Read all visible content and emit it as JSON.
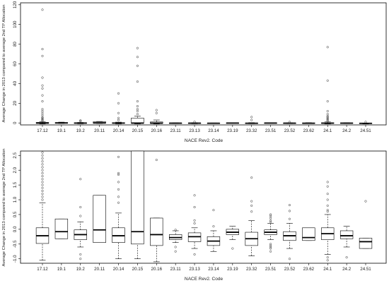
{
  "chart_data": [
    {
      "type": "box",
      "xlabel": "NACE Rev2. Code",
      "ylabel": "Average Change in 2013 compared to average 2nd TP Allocation",
      "ylim": [
        -2,
        122
      ],
      "yticks": [
        0,
        20,
        40,
        60,
        80,
        100,
        120
      ],
      "grid": false,
      "categories": [
        "17.12",
        "19.1",
        "19.2",
        "20.11",
        "20.14",
        "20.15",
        "20.16",
        "23.11",
        "23.13",
        "23.14",
        "23.19",
        "23.32",
        "23.51",
        "23.52",
        "23.62",
        "24.1",
        "24.2",
        "24.51"
      ],
      "boxes": [
        {
          "q1": -0.5,
          "median": 0.0,
          "q3": 0.4,
          "whisker_low": -1.0,
          "whisker_high": 1.2,
          "outliers": [
            115,
            75,
            68,
            46,
            38,
            35,
            28,
            22,
            14,
            12,
            10,
            8,
            6,
            5,
            4,
            3,
            2
          ]
        },
        {
          "q1": -0.3,
          "median": 0.0,
          "q3": 0.3,
          "whisker_low": -0.5,
          "whisker_high": 0.8,
          "outliers": []
        },
        {
          "q1": -0.4,
          "median": -0.1,
          "q3": 0.1,
          "whisker_low": -0.8,
          "whisker_high": 0.5,
          "outliers": [
            2.5,
            1.8
          ]
        },
        {
          "q1": -0.3,
          "median": 0.0,
          "q3": 1.2,
          "whisker_low": -0.5,
          "whisker_high": 1.5,
          "outliers": []
        },
        {
          "q1": -0.4,
          "median": -0.1,
          "q3": 0.2,
          "whisker_low": -1.0,
          "whisker_high": 0.8,
          "outliers": [
            30,
            20,
            10,
            5,
            3
          ]
        },
        {
          "q1": -0.5,
          "median": -0.1,
          "q3": 5,
          "whisker_low": -1.0,
          "whisker_high": 7,
          "outliers": [
            76,
            67,
            58,
            42,
            22,
            17,
            14,
            12,
            9
          ]
        },
        {
          "q1": -0.5,
          "median": -0.2,
          "q3": 1.0,
          "whisker_low": -1.0,
          "whisker_high": 3,
          "outliers": [
            13,
            10
          ]
        },
        {
          "q1": -0.4,
          "median": -0.2,
          "q3": -0.1,
          "whisker_low": -0.6,
          "whisker_high": 0.1,
          "outliers": []
        },
        {
          "q1": -0.4,
          "median": -0.2,
          "q3": -0.1,
          "whisker_low": -0.8,
          "whisker_high": 0.2,
          "outliers": [
            1.2
          ]
        },
        {
          "q1": -0.5,
          "median": -0.3,
          "q3": -0.2,
          "whisker_low": -0.7,
          "whisker_high": 0.0,
          "outliers": []
        },
        {
          "q1": -0.2,
          "median": -0.1,
          "q3": 0.0,
          "whisker_low": -0.4,
          "whisker_high": 0.1,
          "outliers": []
        },
        {
          "q1": -0.5,
          "median": -0.3,
          "q3": -0.1,
          "whisker_low": -0.8,
          "whisker_high": 0.3,
          "outliers": [
            6,
            3
          ]
        },
        {
          "q1": -0.2,
          "median": -0.1,
          "q3": 0.0,
          "whisker_low": -0.4,
          "whisker_high": 0.2,
          "outliers": []
        },
        {
          "q1": -0.4,
          "median": -0.2,
          "q3": -0.1,
          "whisker_low": -0.7,
          "whisker_high": 0.1,
          "outliers": [
            1
          ]
        },
        {
          "q1": -0.4,
          "median": -0.3,
          "q3": 0.0,
          "whisker_low": -0.5,
          "whisker_high": 0.2,
          "outliers": []
        },
        {
          "q1": -0.4,
          "median": -0.2,
          "q3": 0.1,
          "whisker_low": -1.0,
          "whisker_high": 1.0,
          "outliers": [
            77,
            43,
            22,
            12,
            9,
            7,
            6,
            5,
            4,
            3,
            2
          ]
        },
        {
          "q1": -0.4,
          "median": -0.2,
          "q3": 0.0,
          "whisker_low": -0.6,
          "whisker_high": 0.2,
          "outliers": []
        },
        {
          "q1": -0.7,
          "median": -0.4,
          "q3": -0.3,
          "whisker_low": -1.0,
          "whisker_high": -0.1,
          "outliers": [
            1.0
          ]
        }
      ]
    },
    {
      "type": "box",
      "xlabel": "NACE Rev2. Code",
      "ylabel": "Average Change in 2013 compared to average 2nd TP Allocation",
      "ylim": [
        -1.15,
        2.65
      ],
      "yticks": [
        -1.0,
        -0.5,
        0.0,
        0.5,
        1.0,
        1.5,
        2.0,
        2.5
      ],
      "ytick_labels": [
        "-1.0",
        "-0.5",
        "0.0",
        "0.5",
        "1.0",
        "1.5",
        "2.0",
        "2.5"
      ],
      "grid": false,
      "categories": [
        "17.12",
        "19.1",
        "19.2",
        "20.11",
        "20.14",
        "20.15",
        "20.16",
        "23.11",
        "23.13",
        "23.14",
        "23.19",
        "23.32",
        "23.51",
        "23.52",
        "23.62",
        "24.1",
        "24.2",
        "24.51"
      ],
      "boxes": [
        {
          "q1": -0.48,
          "median": -0.22,
          "q3": 0.05,
          "whisker_low": -1.05,
          "whisker_high": 0.9,
          "outliers": [
            2.6,
            2.5,
            2.4,
            2.3,
            2.2,
            2.1,
            2.0,
            1.9,
            1.8,
            1.7,
            1.6,
            1.5,
            1.4,
            1.3,
            1.2,
            1.1,
            1.0
          ]
        },
        {
          "q1": -0.32,
          "median": -0.08,
          "q3": 0.35,
          "whisker_low": -0.32,
          "whisker_high": 0.35,
          "outliers": []
        },
        {
          "q1": -0.35,
          "median": -0.18,
          "q3": -0.02,
          "whisker_low": -0.6,
          "whisker_high": 0.25,
          "outliers": [
            1.7,
            0.75,
            0.45,
            -0.85,
            -1.0
          ]
        },
        {
          "q1": -0.45,
          "median": -0.02,
          "q3": 1.15,
          "whisker_low": -0.45,
          "whisker_high": 1.15,
          "outliers": []
        },
        {
          "q1": -0.45,
          "median": -0.22,
          "q3": 0.05,
          "whisker_low": -1.0,
          "whisker_high": 0.55,
          "outliers": [
            2.45,
            1.9,
            1.85,
            1.6,
            1.35,
            1.1,
            0.9
          ]
        },
        {
          "q1": -0.5,
          "median": -0.08,
          "q3": 2.75,
          "whisker_low": -1.0,
          "whisker_high": 2.75,
          "outliers": []
        },
        {
          "q1": -0.55,
          "median": -0.18,
          "q3": 0.38,
          "whisker_low": -1.1,
          "whisker_high": 0.38,
          "outliers": [
            2.35
          ]
        },
        {
          "q1": -0.35,
          "median": -0.28,
          "q3": -0.18,
          "whisker_low": -0.45,
          "whisker_high": -0.05,
          "outliers": [
            -0.02,
            -0.6,
            -0.75
          ]
        },
        {
          "q1": -0.42,
          "median": -0.25,
          "q3": -0.12,
          "whisker_low": -0.65,
          "whisker_high": 0.05,
          "outliers": [
            1.15,
            0.75,
            0.3,
            0.2,
            -0.85
          ]
        },
        {
          "q1": -0.55,
          "median": -0.4,
          "q3": -0.25,
          "whisker_low": -0.75,
          "whisker_high": -0.05,
          "outliers": [
            0.65,
            0.1
          ]
        },
        {
          "q1": -0.18,
          "median": -0.1,
          "q3": 0.0,
          "whisker_low": -0.35,
          "whisker_high": 0.1,
          "outliers": [
            -0.65
          ]
        },
        {
          "q1": -0.55,
          "median": -0.32,
          "q3": -0.1,
          "whisker_low": -0.9,
          "whisker_high": 0.3,
          "outliers": [
            1.75,
            0.95,
            0.8,
            0.6
          ]
        },
        {
          "q1": -0.18,
          "median": -0.1,
          "q3": -0.02,
          "whisker_low": -0.35,
          "whisker_high": 0.2,
          "outliers": [
            0.5,
            0.45,
            0.38,
            0.3,
            0.25,
            -0.5,
            -0.55,
            -0.6,
            -0.65,
            -0.75
          ]
        },
        {
          "q1": -0.38,
          "median": -0.22,
          "q3": -0.08,
          "whisker_low": -0.65,
          "whisker_high": 0.2,
          "outliers": [
            0.82,
            0.62,
            0.35,
            -1.0
          ]
        },
        {
          "q1": -0.38,
          "median": -0.28,
          "q3": 0.05,
          "whisker_low": -0.38,
          "whisker_high": 0.05,
          "outliers": []
        },
        {
          "q1": -0.35,
          "median": -0.15,
          "q3": 0.05,
          "whisker_low": -0.85,
          "whisker_high": 0.5,
          "outliers": [
            1.6,
            1.45,
            1.2,
            1.0,
            0.8,
            0.65,
            0.6,
            -0.95,
            -1.05
          ]
        },
        {
          "q1": -0.32,
          "median": -0.22,
          "q3": -0.05,
          "whisker_low": -0.6,
          "whisker_high": 0.1,
          "outliers": [
            -0.95
          ]
        },
        {
          "q1": -0.65,
          "median": -0.42,
          "q3": -0.3,
          "whisker_low": -0.65,
          "whisker_high": -0.3,
          "outliers": [
            0.95
          ]
        }
      ]
    }
  ]
}
